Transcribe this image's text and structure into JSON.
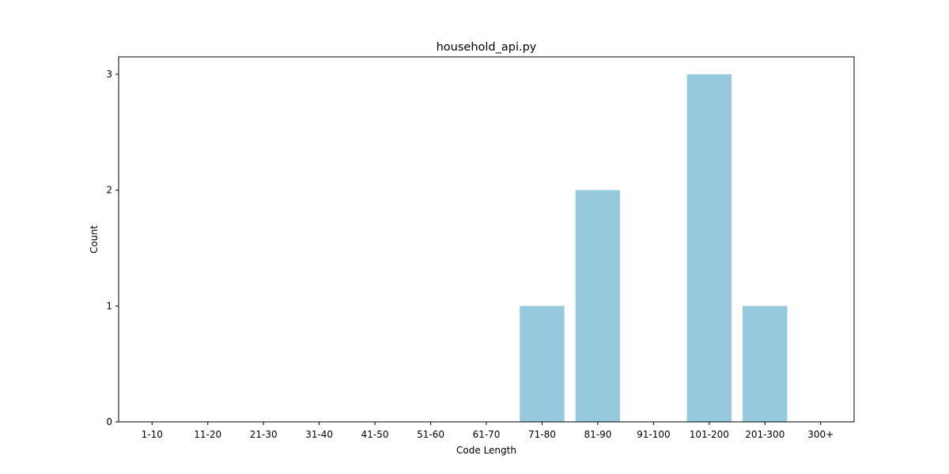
{
  "chart_data": {
    "type": "bar",
    "title": "household_api.py",
    "xlabel": "Code Length",
    "ylabel": "Count",
    "categories": [
      "1-10",
      "11-20",
      "21-30",
      "31-40",
      "41-50",
      "51-60",
      "61-70",
      "71-80",
      "81-90",
      "91-100",
      "101-200",
      "201-300",
      "300+"
    ],
    "values": [
      0,
      0,
      0,
      0,
      0,
      0,
      0,
      1,
      2,
      0,
      3,
      1,
      0
    ],
    "ylim": [
      0,
      3.15
    ],
    "yticks": [
      0,
      1,
      2,
      3
    ],
    "bar_color": "#96c9dd",
    "grid": false,
    "legend": "none"
  }
}
